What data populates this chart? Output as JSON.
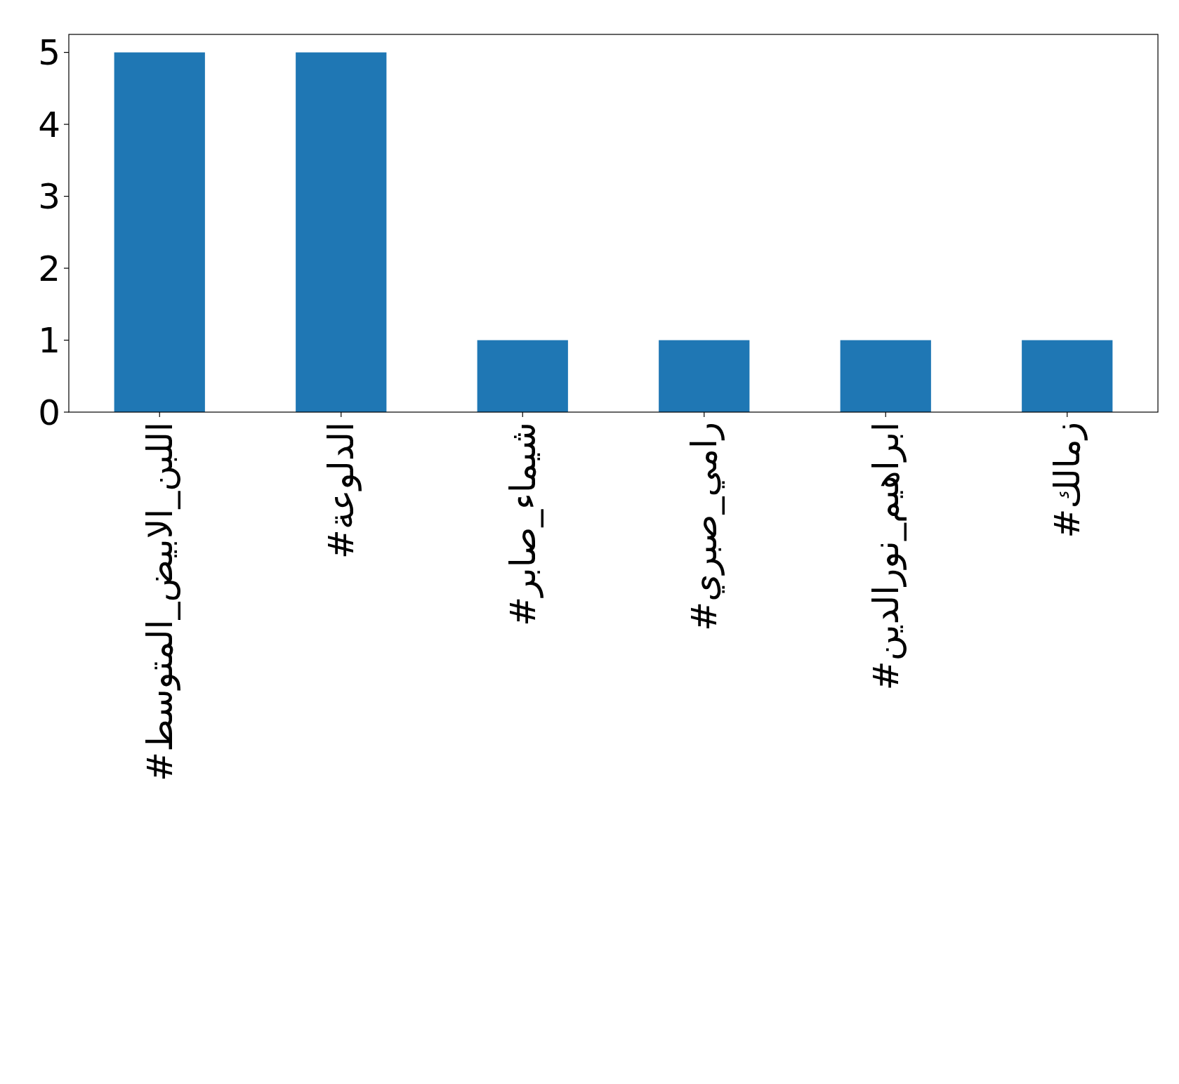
{
  "chart_data": {
    "type": "bar",
    "categories": [
      "#اللبن_الابيض_المتوسط",
      "#الدلوعة",
      "#شيماء_صابر",
      "#رامي_صبري",
      "#ابراهيم_نورالدين",
      "#زمالك"
    ],
    "values": [
      5,
      5,
      1,
      1,
      1,
      1
    ],
    "color": "#1f77b4",
    "ylim": [
      0,
      5.25
    ],
    "yticks": [
      0,
      1,
      2,
      3,
      4,
      5
    ],
    "grid": false
  }
}
